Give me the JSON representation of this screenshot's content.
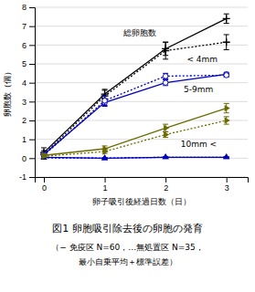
{
  "chart_data": {
    "type": "line",
    "title": "図1  卵胞吸引除去後の卵胞の発育",
    "subtitle": [
      "（− 免疫区 N=60，…無処置区 N=35，",
      "最小自乗平均＋標準誤差）"
    ],
    "x_label": "卵子吸引後経過日数（日）",
    "y_label": "卵胞数（個）",
    "x": [
      0,
      1,
      2,
      3
    ],
    "xlim": [
      -0.15,
      3.35
    ],
    "xticks": [
      0,
      1,
      2,
      3
    ],
    "ylim": [
      -1,
      8
    ],
    "yticks": [
      -1,
      0,
      1,
      2,
      3,
      4,
      5,
      6,
      7,
      8
    ],
    "grid": true,
    "series": [
      {
        "color": "#000000",
        "marker": "plus",
        "line_style": "solid",
        "values": [
          0.3,
          3.4,
          5.8,
          7.4
        ],
        "errors": [
          0.25,
          0.25,
          0.35,
          0.25
        ]
      },
      {
        "color": "#000000",
        "marker": "plus",
        "line_style": "dotted",
        "values": [
          0.2,
          3.3,
          5.7,
          6.15
        ],
        "errors": [
          0.2,
          0.3,
          0.45,
          0.4
        ]
      },
      {
        "color": "#0000bb",
        "marker": "circle-open",
        "line_style": "solid",
        "values": [
          0.2,
          2.95,
          4.0,
          4.45
        ],
        "errors": [
          0.1,
          0.2,
          0.15,
          0.1
        ]
      },
      {
        "color": "#0000bb",
        "marker": "circle-open",
        "line_style": "dotted",
        "values": [
          0.15,
          3.05,
          4.35,
          4.4
        ],
        "errors": [
          0.1,
          0.25,
          0.15,
          0.1
        ]
      },
      {
        "color": "#0000bb",
        "marker": "triangle-up",
        "line_style": "solid",
        "values": [
          0.05,
          0.0,
          0.05,
          0.05
        ],
        "errors": [
          0.05,
          0.02,
          0.02,
          0.02
        ]
      },
      {
        "color": "#0000bb",
        "marker": "triangle-up",
        "line_style": "dotted",
        "values": [
          0.02,
          0.0,
          0.05,
          0.05
        ],
        "errors": [
          0.02,
          0.02,
          0.02,
          0.02
        ]
      },
      {
        "color": "#6b6b00",
        "marker": "triangle-right",
        "line_style": "solid",
        "values": [
          0.15,
          0.5,
          1.6,
          2.65
        ],
        "errors": [
          0.1,
          0.15,
          0.2,
          0.25
        ]
      },
      {
        "color": "#6b6b00",
        "marker": "triangle-right",
        "line_style": "dotted",
        "values": [
          0.1,
          0.35,
          1.25,
          2.0
        ],
        "errors": [
          0.08,
          0.1,
          0.15,
          0.2
        ]
      }
    ],
    "annotations": [
      {
        "text": "総卵胞数",
        "x": 1.3,
        "y": 6.5
      },
      {
        "text": "< 4mm",
        "x": 2.35,
        "y": 5.1
      },
      {
        "text": "5-9mm",
        "x": 2.3,
        "y": 3.5
      },
      {
        "text": "10mm <",
        "x": 2.25,
        "y": 0.6
      }
    ]
  }
}
